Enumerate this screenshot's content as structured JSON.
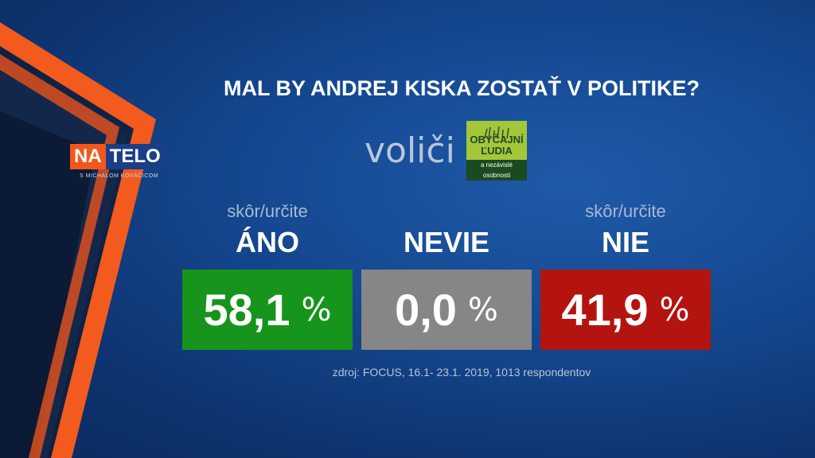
{
  "brand": {
    "logo_left": "NA",
    "logo_right": "TELO",
    "logo_sub": "S MICHALOM KOVÁČICOM"
  },
  "question": "MAL BY ANDREJ KISKA ZOSTAŤ V POLITIKE?",
  "segment": "voliči",
  "party": {
    "name": "OBYČAJNÍ\nĽUDIA",
    "tagline": "a nezávislé osobnosti"
  },
  "results": [
    {
      "subtitle": "skôr/určite",
      "label": "ÁNO",
      "value": "58,1",
      "unit": "%",
      "color": "#16941c"
    },
    {
      "subtitle": "",
      "label": "NEVIE",
      "value": "0,0",
      "unit": "%",
      "color": "#868686"
    },
    {
      "subtitle": "skôr/určite",
      "label": "NIE",
      "value": "41,9",
      "unit": "%",
      "color": "#b3140f"
    }
  ],
  "source": "zdroj: FOCUS, 16.1- 23.1. 2019, 1013 respondentov"
}
